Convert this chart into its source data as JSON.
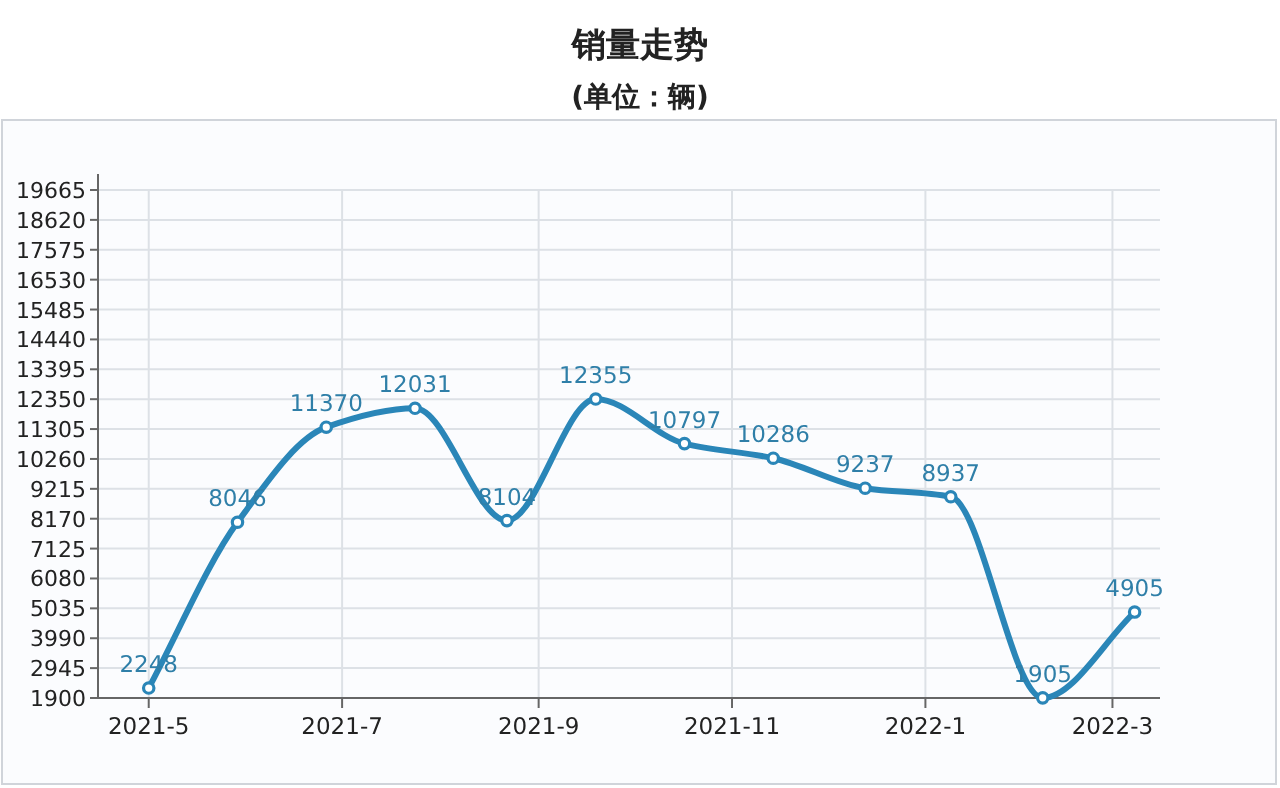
{
  "chart_data": {
    "type": "line",
    "title": "销量走势",
    "subtitle": "(单位：辆)",
    "x": [
      "2021-05-01",
      "2021-05-29",
      "2021-06-26",
      "2021-07-24",
      "2021-08-22",
      "2021-09-19",
      "2021-10-17",
      "2021-11-14",
      "2021-12-13",
      "2022-01-09",
      "2022-02-07",
      "2022-03-08"
    ],
    "series": [
      {
        "color": "#2a86b8",
        "values": [
          2248,
          8046,
          11370,
          12031,
          8104,
          12355,
          10797,
          10286,
          9237,
          8937,
          1905,
          4905
        ]
      }
    ],
    "xlim": [
      "2021-04-15",
      "2022-03-16"
    ],
    "xticks": [
      {
        "value": "2021-05-01",
        "label": "2021-5"
      },
      {
        "value": "2021-07-01",
        "label": "2021-7"
      },
      {
        "value": "2021-09-01",
        "label": "2021-9"
      },
      {
        "value": "2021-11-01",
        "label": "2021-11"
      },
      {
        "value": "2022-01-01",
        "label": "2022-1"
      },
      {
        "value": "2022-03-01",
        "label": "2022-3"
      }
    ],
    "ylim": [
      1900,
      19665
    ],
    "yticks": [
      1900,
      2945,
      3990,
      5035,
      6080,
      7125,
      8170,
      9215,
      10260,
      11305,
      12350,
      13395,
      14440,
      15485,
      16530,
      17575,
      18620,
      19665
    ],
    "grid": true,
    "marker": "circle",
    "line_style": "solid",
    "data_labels": true
  }
}
